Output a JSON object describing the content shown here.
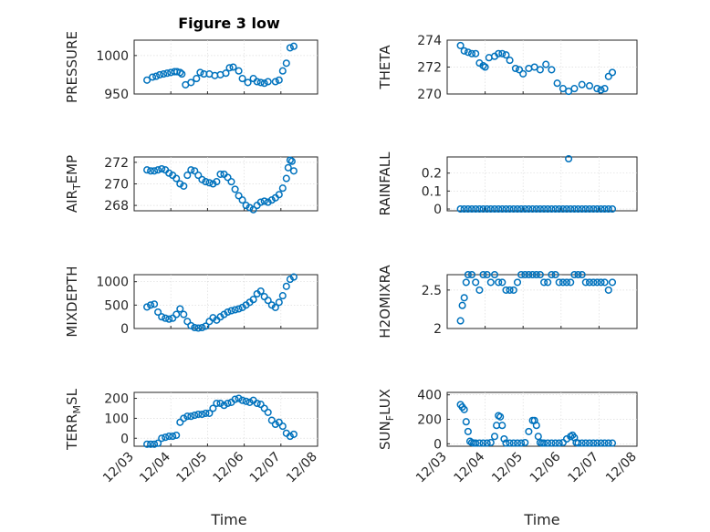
{
  "figure": {
    "title": "Figure 3 low",
    "x_tick_labels": [
      "12/03",
      "12/04",
      "12/05",
      "12/06",
      "12/07",
      "12/08"
    ],
    "x_label": "Time",
    "marker_color": "#0072BD"
  },
  "chart_data": [
    {
      "type": "scatter",
      "ylabel": "PRESSURE",
      "ylim": [
        950,
        1020
      ],
      "yticks": [
        950,
        1000
      ],
      "ytick_labels": [
        "950",
        "1000"
      ],
      "xlim": [
        "12/03",
        "12/08"
      ],
      "grid": true,
      "x_days": [
        0,
        0.15,
        0.25,
        0.35,
        0.45,
        0.55,
        0.65,
        0.75,
        0.82,
        0.9,
        0.95,
        1.05,
        1.2,
        1.35,
        1.45,
        1.55,
        1.7,
        1.85,
        2.0,
        2.15,
        2.25,
        2.35,
        2.5,
        2.6,
        2.75,
        2.9,
        3.0,
        3.1,
        3.2,
        3.3,
        3.5,
        3.6,
        3.7,
        3.8,
        3.9,
        4.0
      ],
      "values": [
        968,
        972,
        973,
        975,
        976,
        977,
        978,
        979,
        979,
        978,
        976,
        962,
        965,
        970,
        978,
        976,
        976,
        974,
        975,
        977,
        984,
        985,
        980,
        970,
        965,
        970,
        966,
        965,
        964,
        966,
        966,
        968,
        980,
        990,
        1010,
        1012
      ]
    },
    {
      "type": "scatter",
      "ylabel": "THETA",
      "ylim": [
        270,
        274
      ],
      "yticks": [
        270,
        272,
        274
      ],
      "ytick_labels": [
        "270",
        "272",
        "274"
      ],
      "xlim": [
        "12/03",
        "12/08"
      ],
      "grid": true,
      "x_days": [
        0,
        0.1,
        0.2,
        0.3,
        0.4,
        0.5,
        0.6,
        0.65,
        0.75,
        0.9,
        1.0,
        1.1,
        1.2,
        1.3,
        1.45,
        1.55,
        1.65,
        1.8,
        1.95,
        2.1,
        2.25,
        2.4,
        2.55,
        2.7,
        2.85,
        3.0,
        3.2,
        3.4,
        3.6,
        3.7,
        3.8,
        3.9,
        4.0
      ],
      "values": [
        273.6,
        273.2,
        273.1,
        273.0,
        273.0,
        272.3,
        272.1,
        272.0,
        272.7,
        272.8,
        273.0,
        273.0,
        272.9,
        272.5,
        271.9,
        271.8,
        271.5,
        271.9,
        272.0,
        271.8,
        272.2,
        271.8,
        270.8,
        270.4,
        270.2,
        270.4,
        270.7,
        270.6,
        270.4,
        270.3,
        270.4,
        271.3,
        271.6
      ]
    },
    {
      "type": "scatter",
      "ylabel": "AIR_TEMP",
      "ylim": [
        267.5,
        272.5
      ],
      "yticks": [
        268,
        270,
        272
      ],
      "ytick_labels": [
        "268",
        "270",
        "272"
      ],
      "xlim": [
        "12/03",
        "12/08"
      ],
      "grid": true,
      "x_days": [
        0,
        0.1,
        0.2,
        0.3,
        0.4,
        0.5,
        0.6,
        0.7,
        0.8,
        0.9,
        1.0,
        1.1,
        1.2,
        1.3,
        1.4,
        1.5,
        1.6,
        1.7,
        1.8,
        1.9,
        2.0,
        2.1,
        2.2,
        2.3,
        2.4,
        2.5,
        2.6,
        2.7,
        2.8,
        2.9,
        3.0,
        3.1,
        3.2,
        3.3,
        3.4,
        3.5,
        3.6,
        3.7,
        3.8,
        3.85,
        3.9,
        3.95,
        4.0
      ],
      "values": [
        271.3,
        271.2,
        271.2,
        271.3,
        271.4,
        271.3,
        271.0,
        270.8,
        270.5,
        270.0,
        269.8,
        270.8,
        271.3,
        271.2,
        270.8,
        270.4,
        270.2,
        270.1,
        270.0,
        270.2,
        270.9,
        270.9,
        270.6,
        270.2,
        269.5,
        268.9,
        268.5,
        268.0,
        267.8,
        267.6,
        268.0,
        268.3,
        268.4,
        268.3,
        268.5,
        268.7,
        269.0,
        269.6,
        270.5,
        271.5,
        272.2,
        272.1,
        271.2
      ]
    },
    {
      "type": "scatter",
      "ylabel": "RAINFALL",
      "ylim": [
        -0.01,
        0.29
      ],
      "yticks": [
        0,
        0.1,
        0.2
      ],
      "ytick_labels": [
        "0",
        "0.1",
        "0.2"
      ],
      "xlim": [
        "12/03",
        "12/08"
      ],
      "grid": true,
      "x_days": [
        0,
        0.1,
        0.2,
        0.3,
        0.4,
        0.5,
        0.6,
        0.7,
        0.8,
        0.9,
        1.0,
        1.1,
        1.2,
        1.3,
        1.4,
        1.5,
        1.6,
        1.7,
        1.8,
        1.9,
        2.0,
        2.1,
        2.2,
        2.3,
        2.4,
        2.5,
        2.6,
        2.7,
        2.8,
        2.9,
        3.0,
        3.1,
        3.2,
        3.3,
        3.4,
        3.5,
        3.6,
        3.7,
        3.8,
        3.9,
        4.0
      ],
      "values": [
        0,
        0,
        0,
        0,
        0,
        0,
        0,
        0,
        0,
        0,
        0,
        0,
        0,
        0,
        0,
        0,
        0,
        0,
        0,
        0,
        0,
        0,
        0,
        0,
        0,
        0,
        0,
        0,
        0,
        0,
        0,
        0,
        0,
        0,
        0,
        0,
        0,
        0,
        0,
        0,
        0
      ],
      "outlier": {
        "x_day": 2.85,
        "value": 0.28
      }
    },
    {
      "type": "scatter",
      "ylabel": "MIXDEPTH",
      "ylim": [
        0,
        1150
      ],
      "yticks": [
        0,
        500,
        1000
      ],
      "ytick_labels": [
        "0",
        "500",
        "1000"
      ],
      "xlim": [
        "12/03",
        "12/08"
      ],
      "grid": true,
      "x_days": [
        0,
        0.1,
        0.2,
        0.3,
        0.4,
        0.5,
        0.6,
        0.7,
        0.8,
        0.9,
        1.0,
        1.1,
        1.2,
        1.3,
        1.4,
        1.5,
        1.6,
        1.7,
        1.8,
        1.9,
        2.0,
        2.1,
        2.2,
        2.3,
        2.4,
        2.5,
        2.6,
        2.7,
        2.8,
        2.9,
        3.0,
        3.1,
        3.2,
        3.3,
        3.4,
        3.5,
        3.6,
        3.7,
        3.8,
        3.9,
        4.0
      ],
      "values": [
        460,
        500,
        520,
        350,
        250,
        220,
        200,
        220,
        300,
        420,
        300,
        150,
        60,
        20,
        10,
        20,
        50,
        150,
        230,
        180,
        250,
        300,
        350,
        380,
        400,
        420,
        450,
        500,
        560,
        620,
        740,
        800,
        680,
        600,
        500,
        450,
        560,
        700,
        900,
        1050,
        1100
      ]
    },
    {
      "type": "scatter",
      "ylabel": "H2OMIXRA",
      "ylim": [
        2,
        2.7
      ],
      "yticks": [
        2,
        2.5
      ],
      "ytick_labels": [
        "2",
        "2.5"
      ],
      "xlim": [
        "12/03",
        "12/08"
      ],
      "grid": true,
      "x_days": [
        0,
        0.05,
        0.1,
        0.15,
        0.2,
        0.3,
        0.4,
        0.5,
        0.6,
        0.7,
        0.8,
        0.9,
        1.0,
        1.1,
        1.2,
        1.3,
        1.4,
        1.5,
        1.6,
        1.7,
        1.8,
        1.9,
        2.0,
        2.1,
        2.2,
        2.3,
        2.4,
        2.5,
        2.6,
        2.7,
        2.8,
        2.9,
        3.0,
        3.1,
        3.2,
        3.3,
        3.4,
        3.5,
        3.6,
        3.7,
        3.8,
        3.9,
        4.0
      ],
      "values": [
        2.1,
        2.3,
        2.4,
        2.6,
        2.7,
        2.7,
        2.6,
        2.5,
        2.7,
        2.7,
        2.6,
        2.7,
        2.6,
        2.6,
        2.5,
        2.5,
        2.5,
        2.6,
        2.7,
        2.7,
        2.7,
        2.7,
        2.7,
        2.7,
        2.6,
        2.6,
        2.7,
        2.7,
        2.6,
        2.6,
        2.6,
        2.6,
        2.7,
        2.7,
        2.7,
        2.6,
        2.6,
        2.6,
        2.6,
        2.6,
        2.6,
        2.5,
        2.6
      ]
    },
    {
      "type": "scatter",
      "ylabel": "TERR_MSL",
      "ylim": [
        -40,
        230
      ],
      "yticks": [
        0,
        100,
        200
      ],
      "ytick_labels": [
        "0",
        "100",
        "200"
      ],
      "xlim": [
        "12/03",
        "12/08"
      ],
      "grid": true,
      "x_days": [
        0,
        0.1,
        0.2,
        0.3,
        0.4,
        0.5,
        0.6,
        0.7,
        0.8,
        0.9,
        1.0,
        1.1,
        1.2,
        1.3,
        1.4,
        1.5,
        1.6,
        1.7,
        1.8,
        1.9,
        2.0,
        2.1,
        2.2,
        2.3,
        2.4,
        2.5,
        2.6,
        2.7,
        2.8,
        2.9,
        3.0,
        3.1,
        3.2,
        3.3,
        3.4,
        3.5,
        3.6,
        3.7,
        3.8,
        3.9,
        4.0
      ],
      "values": [
        -30,
        -30,
        -30,
        -25,
        0,
        5,
        10,
        10,
        15,
        80,
        100,
        110,
        110,
        115,
        120,
        120,
        125,
        125,
        150,
        175,
        175,
        165,
        175,
        180,
        195,
        200,
        190,
        185,
        180,
        190,
        175,
        170,
        150,
        130,
        90,
        70,
        80,
        60,
        25,
        10,
        20
      ]
    },
    {
      "type": "scatter",
      "ylabel": "SUN_FLUX",
      "ylim": [
        -20,
        420
      ],
      "yticks": [
        0,
        200,
        400
      ],
      "ytick_labels": [
        "0",
        "200",
        "400"
      ],
      "xlim": [
        "12/03",
        "12/08"
      ],
      "grid": true,
      "x_days": [
        0,
        0.05,
        0.1,
        0.15,
        0.2,
        0.25,
        0.3,
        0.35,
        0.4,
        0.5,
        0.6,
        0.7,
        0.8,
        0.9,
        0.95,
        1.0,
        1.05,
        1.1,
        1.15,
        1.2,
        1.3,
        1.4,
        1.5,
        1.6,
        1.7,
        1.8,
        1.9,
        1.95,
        2.0,
        2.05,
        2.1,
        2.15,
        2.2,
        2.3,
        2.4,
        2.5,
        2.6,
        2.7,
        2.8,
        2.9,
        2.95,
        3.0,
        3.05,
        3.1,
        3.2,
        3.3,
        3.4,
        3.5,
        3.6,
        3.7,
        3.8,
        3.9,
        4.0
      ],
      "values": [
        320,
        300,
        280,
        180,
        100,
        20,
        10,
        5,
        5,
        5,
        5,
        5,
        10,
        60,
        150,
        230,
        220,
        150,
        40,
        5,
        5,
        5,
        5,
        5,
        10,
        100,
        190,
        190,
        150,
        60,
        10,
        5,
        5,
        5,
        5,
        5,
        5,
        10,
        40,
        60,
        70,
        50,
        10,
        5,
        5,
        5,
        5,
        5,
        5,
        5,
        5,
        5,
        5
      ]
    }
  ]
}
